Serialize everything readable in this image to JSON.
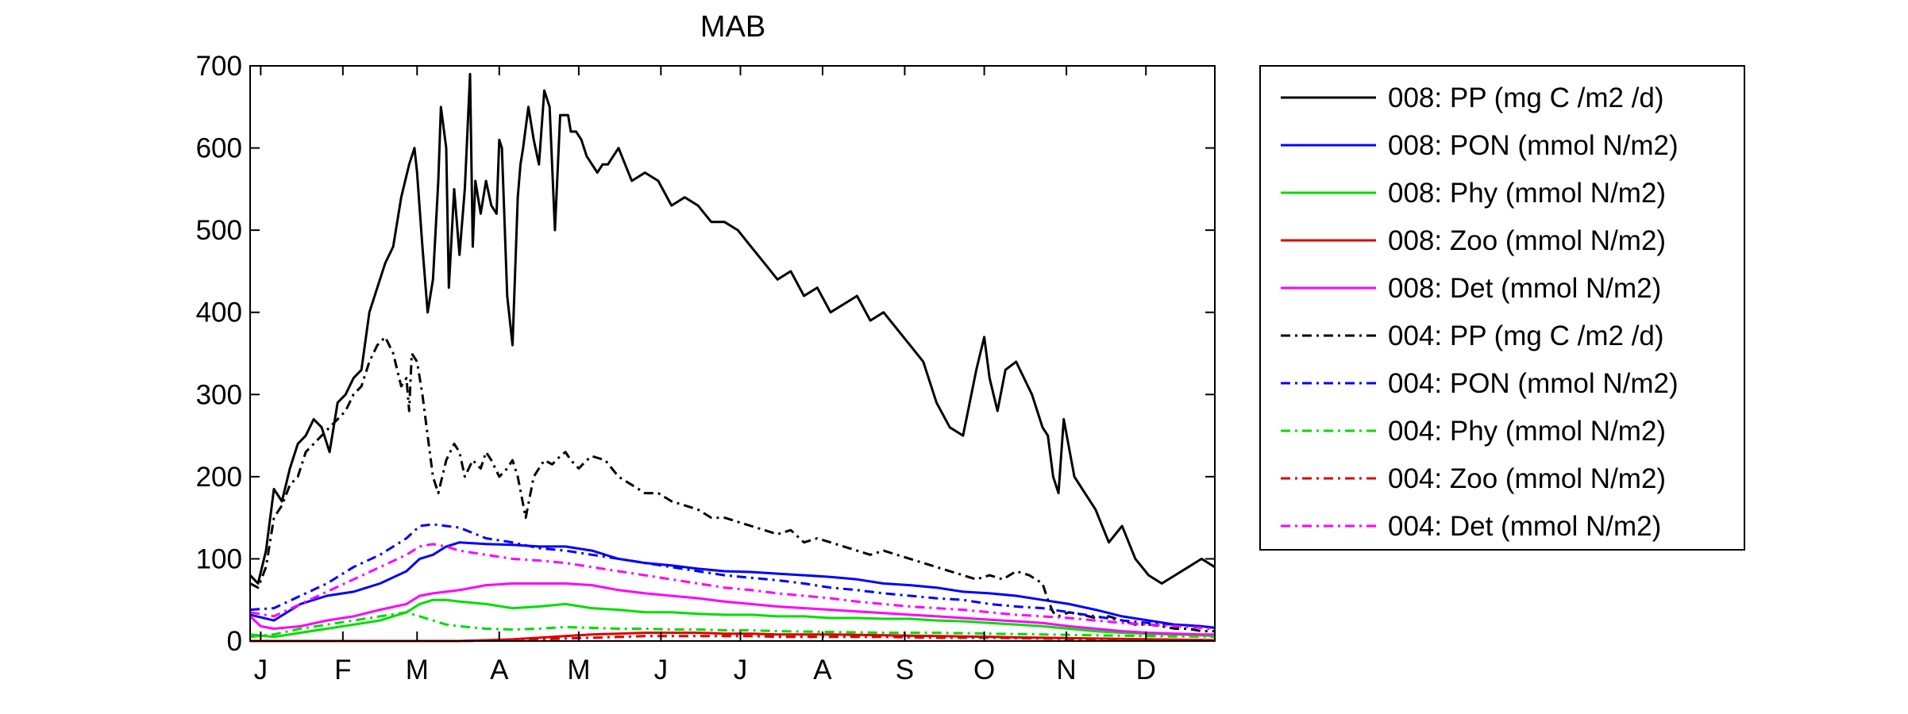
{
  "chart_data": {
    "type": "line",
    "title": "MAB",
    "xlabel": "",
    "ylabel": "",
    "ylim": [
      0,
      700
    ],
    "xlim": [
      1,
      365
    ],
    "y_ticks": [
      0,
      100,
      200,
      300,
      400,
      500,
      600,
      700
    ],
    "x_ticks": [
      {
        "day": 5,
        "label": "J"
      },
      {
        "day": 36,
        "label": "F"
      },
      {
        "day": 64,
        "label": "M"
      },
      {
        "day": 95,
        "label": "A"
      },
      {
        "day": 125,
        "label": "M"
      },
      {
        "day": 156,
        "label": "J"
      },
      {
        "day": 186,
        "label": "J"
      },
      {
        "day": 217,
        "label": "A"
      },
      {
        "day": 248,
        "label": "S"
      },
      {
        "day": 278,
        "label": "O"
      },
      {
        "day": 309,
        "label": "N"
      },
      {
        "day": 339,
        "label": "D"
      }
    ],
    "grid": false,
    "legend_position": "right outside",
    "series": [
      {
        "name": "008: PP (mg C /m2 /d)",
        "color": "#000000",
        "style": "solid",
        "x": [
          1,
          4,
          7,
          10,
          13,
          16,
          19,
          22,
          25,
          28,
          31,
          34,
          37,
          40,
          43,
          46,
          49,
          52,
          55,
          58,
          61,
          63,
          64,
          66,
          68,
          70,
          72,
          73,
          75,
          76,
          78,
          80,
          82,
          84,
          85,
          86,
          88,
          90,
          92,
          94,
          95,
          96,
          98,
          100,
          102,
          103,
          104,
          106,
          108,
          110,
          112,
          114,
          116,
          118,
          120,
          121,
          122,
          124,
          126,
          128,
          130,
          132,
          134,
          136,
          140,
          145,
          150,
          155,
          160,
          165,
          170,
          175,
          180,
          185,
          190,
          195,
          200,
          205,
          210,
          215,
          220,
          225,
          230,
          235,
          240,
          245,
          250,
          255,
          260,
          265,
          270,
          275,
          278,
          280,
          283,
          286,
          290,
          293,
          296,
          300,
          302,
          304,
          306,
          308,
          312,
          316,
          320,
          325,
          330,
          335,
          340,
          345,
          350,
          355,
          360,
          365
        ],
        "y": [
          80,
          70,
          110,
          185,
          170,
          210,
          240,
          250,
          270,
          260,
          230,
          290,
          300,
          320,
          330,
          400,
          430,
          460,
          480,
          540,
          580,
          600,
          570,
          480,
          400,
          440,
          560,
          650,
          600,
          430,
          550,
          470,
          550,
          690,
          480,
          560,
          520,
          560,
          530,
          520,
          610,
          600,
          420,
          360,
          540,
          580,
          600,
          650,
          610,
          580,
          670,
          650,
          500,
          640,
          640,
          640,
          620,
          620,
          610,
          590,
          580,
          570,
          580,
          580,
          600,
          560,
          570,
          560,
          530,
          540,
          530,
          510,
          510,
          500,
          480,
          460,
          440,
          450,
          420,
          430,
          400,
          410,
          420,
          390,
          400,
          380,
          360,
          340,
          290,
          260,
          250,
          330,
          370,
          320,
          280,
          330,
          340,
          320,
          300,
          260,
          250,
          200,
          180,
          270,
          200,
          180,
          160,
          120,
          140,
          100,
          80,
          70,
          80,
          90,
          100,
          90
        ]
      },
      {
        "name": "008: PON (mmol N/m2)",
        "color": "#0000ff",
        "style": "solid",
        "x": [
          1,
          10,
          20,
          30,
          40,
          50,
          60,
          65,
          70,
          75,
          80,
          90,
          100,
          110,
          120,
          130,
          140,
          150,
          160,
          170,
          180,
          190,
          200,
          210,
          220,
          230,
          240,
          250,
          260,
          270,
          280,
          290,
          300,
          310,
          320,
          330,
          340,
          350,
          360,
          365
        ],
        "y": [
          32,
          25,
          45,
          55,
          60,
          70,
          85,
          100,
          105,
          115,
          120,
          118,
          117,
          115,
          115,
          110,
          100,
          95,
          92,
          88,
          85,
          84,
          82,
          80,
          78,
          75,
          70,
          68,
          65,
          60,
          58,
          55,
          50,
          45,
          38,
          30,
          25,
          20,
          18,
          16
        ]
      },
      {
        "name": "008: Phy (mmol N/m2)",
        "color": "#00dd00",
        "style": "solid",
        "x": [
          1,
          10,
          20,
          30,
          40,
          50,
          60,
          65,
          70,
          75,
          80,
          90,
          100,
          110,
          120,
          130,
          140,
          150,
          160,
          170,
          180,
          190,
          200,
          210,
          220,
          230,
          240,
          250,
          260,
          270,
          280,
          290,
          300,
          310,
          320,
          330,
          340,
          350,
          360,
          365
        ],
        "y": [
          8,
          5,
          10,
          15,
          20,
          25,
          35,
          45,
          50,
          50,
          48,
          45,
          40,
          42,
          45,
          40,
          38,
          35,
          35,
          33,
          32,
          32,
          30,
          30,
          28,
          28,
          27,
          27,
          25,
          24,
          22,
          20,
          18,
          15,
          12,
          10,
          9,
          8,
          7,
          6
        ]
      },
      {
        "name": "008: Zoo (mmol N/m2)",
        "color": "#dd0000",
        "style": "solid",
        "x": [
          1,
          20,
          40,
          60,
          80,
          100,
          110,
          120,
          130,
          140,
          150,
          160,
          170,
          180,
          190,
          200,
          220,
          240,
          260,
          280,
          300,
          320,
          340,
          365
        ],
        "y": [
          0,
          0,
          0,
          0,
          0,
          2,
          4,
          6,
          8,
          9,
          10,
          10,
          10,
          9,
          9,
          8,
          8,
          7,
          6,
          5,
          4,
          3,
          2,
          1
        ]
      },
      {
        "name": "008: Det (mmol N/m2)",
        "color": "#ff00ff",
        "style": "solid",
        "x": [
          1,
          5,
          10,
          20,
          30,
          40,
          50,
          60,
          65,
          70,
          75,
          80,
          90,
          100,
          110,
          120,
          130,
          140,
          150,
          160,
          170,
          180,
          190,
          200,
          210,
          220,
          230,
          240,
          250,
          260,
          270,
          280,
          290,
          300,
          310,
          320,
          330,
          340,
          350,
          360,
          365
        ],
        "y": [
          30,
          18,
          15,
          18,
          25,
          30,
          38,
          45,
          55,
          58,
          60,
          62,
          68,
          70,
          70,
          70,
          68,
          62,
          58,
          55,
          52,
          48,
          45,
          42,
          40,
          38,
          36,
          34,
          32,
          30,
          28,
          26,
          24,
          22,
          18,
          15,
          12,
          10,
          9,
          8,
          8
        ]
      },
      {
        "name": "004: PP (mg C /m2 /d)",
        "color": "#000000",
        "style": "dashdot",
        "x": [
          1,
          4,
          7,
          10,
          13,
          16,
          19,
          22,
          25,
          28,
          31,
          34,
          37,
          40,
          43,
          46,
          49,
          52,
          55,
          58,
          60,
          61,
          62,
          64,
          66,
          68,
          70,
          72,
          75,
          78,
          80,
          82,
          85,
          88,
          90,
          92,
          95,
          98,
          100,
          102,
          105,
          108,
          110,
          112,
          115,
          118,
          120,
          122,
          125,
          128,
          130,
          135,
          140,
          145,
          150,
          155,
          160,
          165,
          170,
          175,
          180,
          185,
          190,
          195,
          200,
          205,
          210,
          215,
          220,
          225,
          230,
          235,
          240,
          245,
          250,
          255,
          260,
          265,
          270,
          275,
          280,
          285,
          290,
          295,
          300,
          302,
          304,
          306,
          310,
          315,
          320,
          325,
          330,
          335,
          340,
          345,
          350,
          355,
          360,
          365
        ],
        "y": [
          70,
          65,
          90,
          150,
          165,
          190,
          200,
          230,
          240,
          250,
          260,
          270,
          280,
          300,
          310,
          340,
          360,
          370,
          350,
          310,
          320,
          280,
          350,
          340,
          300,
          250,
          200,
          180,
          220,
          240,
          230,
          200,
          220,
          210,
          230,
          220,
          200,
          210,
          220,
          200,
          150,
          200,
          210,
          220,
          215,
          225,
          230,
          220,
          210,
          220,
          225,
          220,
          200,
          190,
          180,
          180,
          170,
          165,
          160,
          150,
          150,
          145,
          140,
          135,
          130,
          135,
          120,
          125,
          120,
          115,
          110,
          105,
          110,
          105,
          100,
          95,
          90,
          85,
          80,
          75,
          80,
          75,
          85,
          80,
          70,
          50,
          35,
          30,
          35,
          32,
          28,
          30,
          25,
          20,
          20,
          18,
          15,
          15,
          12,
          12
        ]
      },
      {
        "name": "004: PON (mmol N/m2)",
        "color": "#0000ff",
        "style": "dashdot",
        "x": [
          1,
          10,
          20,
          30,
          40,
          50,
          60,
          65,
          70,
          75,
          80,
          90,
          100,
          110,
          120,
          130,
          140,
          150,
          160,
          170,
          180,
          190,
          200,
          210,
          220,
          230,
          240,
          250,
          260,
          270,
          280,
          290,
          300,
          310,
          320,
          330,
          340,
          350,
          360,
          365
        ],
        "y": [
          38,
          40,
          55,
          70,
          90,
          105,
          125,
          140,
          142,
          140,
          138,
          125,
          120,
          113,
          110,
          105,
          100,
          95,
          90,
          85,
          80,
          77,
          74,
          70,
          65,
          62,
          58,
          55,
          52,
          50,
          45,
          42,
          40,
          35,
          30,
          25,
          22,
          20,
          18,
          16
        ]
      },
      {
        "name": "004: Phy (mmol N/m2)",
        "color": "#00dd00",
        "style": "dashdot",
        "x": [
          1,
          10,
          20,
          30,
          40,
          50,
          60,
          65,
          70,
          75,
          80,
          90,
          100,
          110,
          120,
          130,
          140,
          150,
          160,
          170,
          180,
          190,
          200,
          220,
          240,
          260,
          280,
          300,
          320,
          340,
          365
        ],
        "y": [
          5,
          8,
          15,
          20,
          25,
          30,
          35,
          30,
          25,
          20,
          18,
          15,
          14,
          15,
          17,
          16,
          15,
          15,
          14,
          14,
          13,
          13,
          12,
          11,
          10,
          10,
          9,
          8,
          7,
          6,
          5
        ]
      },
      {
        "name": "004: Zoo (mmol N/m2)",
        "color": "#dd0000",
        "style": "dashdot",
        "x": [
          1,
          20,
          40,
          60,
          80,
          100,
          110,
          120,
          130,
          140,
          150,
          160,
          170,
          180,
          190,
          200,
          220,
          240,
          260,
          280,
          300,
          320,
          340,
          365
        ],
        "y": [
          0,
          0,
          0,
          0,
          0,
          1,
          2,
          3,
          4,
          5,
          6,
          6,
          6,
          6,
          6,
          5,
          5,
          5,
          4,
          4,
          3,
          2,
          2,
          1
        ]
      },
      {
        "name": "004: Det (mmol N/m2)",
        "color": "#ff00ff",
        "style": "dashdot",
        "x": [
          1,
          10,
          20,
          30,
          40,
          50,
          60,
          65,
          70,
          75,
          80,
          90,
          100,
          110,
          120,
          130,
          140,
          150,
          160,
          170,
          180,
          190,
          200,
          210,
          220,
          230,
          240,
          250,
          260,
          270,
          280,
          290,
          300,
          310,
          320,
          330,
          340,
          350,
          360,
          365
        ],
        "y": [
          35,
          30,
          45,
          60,
          75,
          90,
          105,
          115,
          118,
          115,
          110,
          105,
          100,
          98,
          95,
          90,
          85,
          80,
          75,
          70,
          65,
          62,
          58,
          55,
          52,
          48,
          45,
          42,
          40,
          38,
          35,
          32,
          30,
          28,
          25,
          22,
          20,
          18,
          16,
          14
        ]
      }
    ]
  }
}
